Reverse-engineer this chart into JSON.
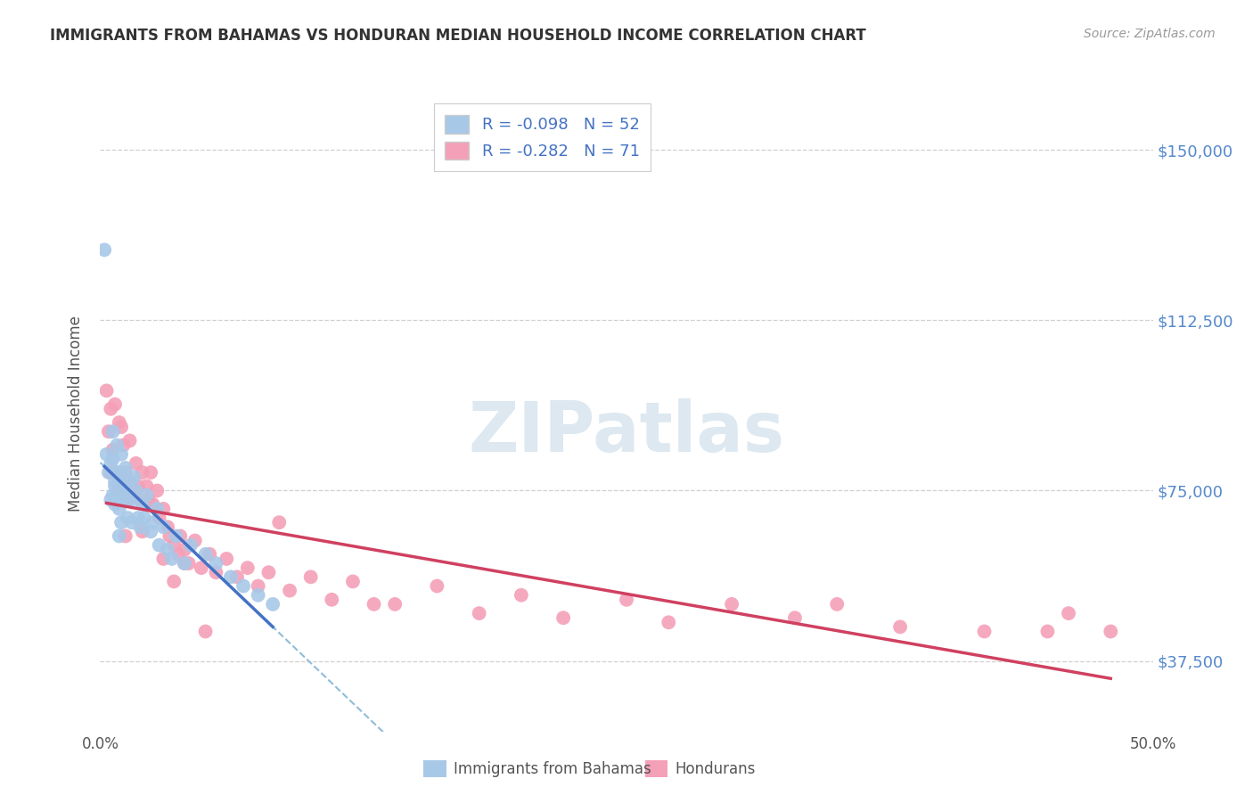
{
  "title": "IMMIGRANTS FROM BAHAMAS VS HONDURAN MEDIAN HOUSEHOLD INCOME CORRELATION CHART",
  "source": "Source: ZipAtlas.com",
  "ylabel": "Median Household Income",
  "xlim": [
    0.0,
    0.5
  ],
  "ylim": [
    22000,
    162000
  ],
  "yticks": [
    37500,
    75000,
    112500,
    150000
  ],
  "ytick_labels": [
    "$37,500",
    "$75,000",
    "$112,500",
    "$150,000"
  ],
  "xticks": [
    0.0,
    0.1,
    0.2,
    0.3,
    0.4,
    0.5
  ],
  "xtick_labels": [
    "0.0%",
    "",
    "",
    "",
    "",
    "50.0%"
  ],
  "legend_r1": "-0.098",
  "legend_n1": "52",
  "legend_r2": "-0.282",
  "legend_n2": "71",
  "blue_color": "#a8c8e8",
  "pink_color": "#f4a0b8",
  "trendline_blue_solid_color": "#4472c4",
  "trendline_blue_dash_color": "#90bcd8",
  "trendline_pink_color": "#d04060",
  "watermark_color": "#dde8f0",
  "title_color": "#333333",
  "source_color": "#999999",
  "right_ytick_color": "#5588cc",
  "legend_label1": "Immigrants from Bahamas",
  "legend_label2": "Hondurans",
  "blue_x": [
    0.002,
    0.003,
    0.004,
    0.005,
    0.005,
    0.006,
    0.006,
    0.006,
    0.007,
    0.007,
    0.007,
    0.008,
    0.008,
    0.008,
    0.009,
    0.009,
    0.009,
    0.01,
    0.01,
    0.01,
    0.01,
    0.011,
    0.011,
    0.012,
    0.013,
    0.013,
    0.014,
    0.015,
    0.015,
    0.016,
    0.017,
    0.018,
    0.019,
    0.02,
    0.021,
    0.022,
    0.024,
    0.025,
    0.027,
    0.028,
    0.03,
    0.032,
    0.034,
    0.036,
    0.04,
    0.043,
    0.05,
    0.055,
    0.062,
    0.068,
    0.075,
    0.082
  ],
  "blue_y": [
    128000,
    83000,
    79000,
    73000,
    81000,
    74000,
    88000,
    82000,
    76000,
    77000,
    72000,
    85000,
    79000,
    74000,
    77000,
    71000,
    65000,
    83000,
    79000,
    74000,
    68000,
    76000,
    73000,
    80000,
    74000,
    69000,
    77000,
    73000,
    68000,
    78000,
    75000,
    69000,
    67000,
    72000,
    69000,
    74000,
    66000,
    68000,
    71000,
    63000,
    67000,
    62000,
    60000,
    65000,
    59000,
    63000,
    61000,
    59000,
    56000,
    54000,
    52000,
    50000
  ],
  "pink_x": [
    0.003,
    0.004,
    0.005,
    0.006,
    0.007,
    0.008,
    0.009,
    0.009,
    0.01,
    0.01,
    0.011,
    0.012,
    0.013,
    0.014,
    0.015,
    0.016,
    0.017,
    0.018,
    0.019,
    0.02,
    0.022,
    0.023,
    0.024,
    0.025,
    0.027,
    0.028,
    0.03,
    0.032,
    0.033,
    0.035,
    0.037,
    0.038,
    0.04,
    0.042,
    0.045,
    0.048,
    0.052,
    0.055,
    0.06,
    0.065,
    0.07,
    0.075,
    0.08,
    0.09,
    0.1,
    0.11,
    0.12,
    0.14,
    0.16,
    0.18,
    0.2,
    0.22,
    0.25,
    0.27,
    0.3,
    0.33,
    0.35,
    0.38,
    0.42,
    0.45,
    0.46,
    0.48,
    0.005,
    0.012,
    0.02,
    0.03,
    0.035,
    0.04,
    0.05,
    0.085,
    0.13
  ],
  "pink_y": [
    97000,
    88000,
    93000,
    84000,
    94000,
    79000,
    90000,
    75000,
    89000,
    76000,
    85000,
    79000,
    73000,
    86000,
    77000,
    74000,
    81000,
    76000,
    73000,
    79000,
    76000,
    73000,
    79000,
    72000,
    75000,
    69000,
    71000,
    67000,
    65000,
    63000,
    61000,
    65000,
    62000,
    59000,
    64000,
    58000,
    61000,
    57000,
    60000,
    56000,
    58000,
    54000,
    57000,
    53000,
    56000,
    51000,
    55000,
    50000,
    54000,
    48000,
    52000,
    47000,
    51000,
    46000,
    50000,
    47000,
    50000,
    45000,
    44000,
    44000,
    48000,
    44000,
    79000,
    65000,
    66000,
    60000,
    55000,
    59000,
    44000,
    68000,
    50000
  ]
}
